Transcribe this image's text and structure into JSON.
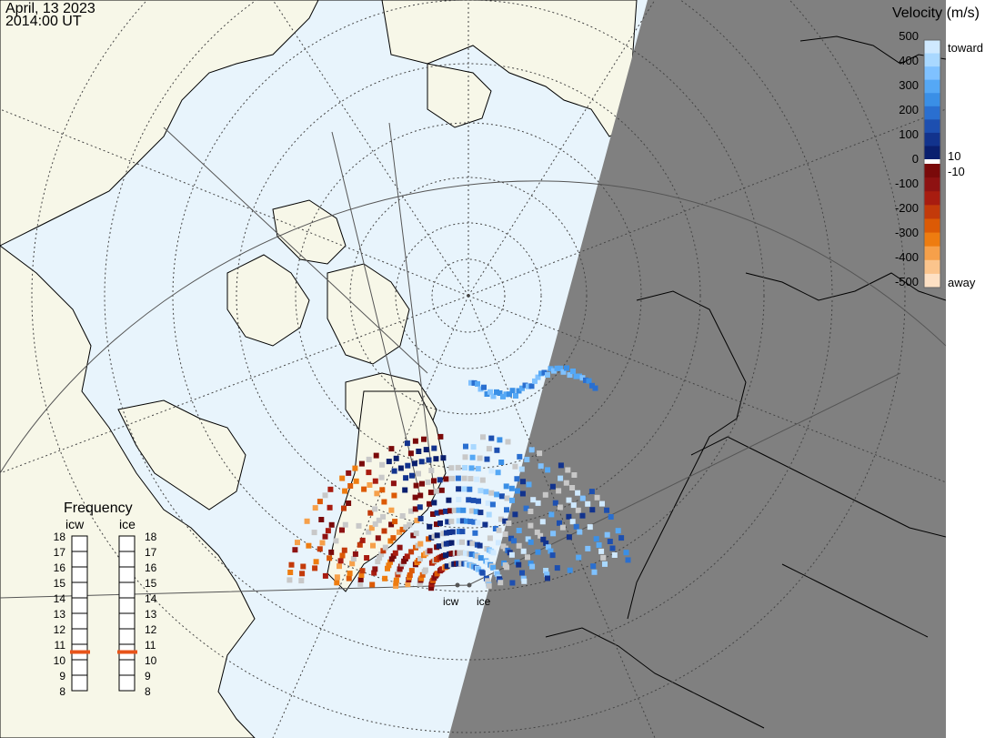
{
  "header": {
    "date": "April, 13 2023",
    "time": "2014:00 UT"
  },
  "colorbar": {
    "title": "Velocity (m/s)",
    "ticks": [
      "500",
      "400",
      "300",
      "200",
      "100",
      "0",
      "-100",
      "-200",
      "-300",
      "-400",
      "-500"
    ],
    "toward_label": "toward",
    "away_label": "away",
    "pos_threshold": "10",
    "neg_threshold": "-10",
    "colors": [
      "#cfe9ff",
      "#a9d8ff",
      "#7fc1ff",
      "#55a8f5",
      "#3a8fe6",
      "#2a6fd0",
      "#1d4fb0",
      "#12338d",
      "#0a1f6e",
      "#7a0a0a",
      "#8e1212",
      "#a81c10",
      "#c33a0a",
      "#dc5a05",
      "#ee7c10",
      "#f6a04a",
      "#fbc48c",
      "#fde0c4"
    ]
  },
  "frequency": {
    "title": "Frequency",
    "radars": [
      {
        "name": "icw",
        "selected": 10.5
      },
      {
        "name": "ice",
        "selected": 10.5
      }
    ],
    "levels": [
      "18",
      "17",
      "16",
      "15",
      "14",
      "13",
      "12",
      "11",
      "10",
      "9",
      "8"
    ]
  },
  "sites": {
    "left": "icw",
    "right": "ice"
  },
  "map": {
    "ocean_color": "#e8f4fc",
    "land_color": "#f7f7e8",
    "night_color": "#808080",
    "grid_color": "#555555"
  }
}
